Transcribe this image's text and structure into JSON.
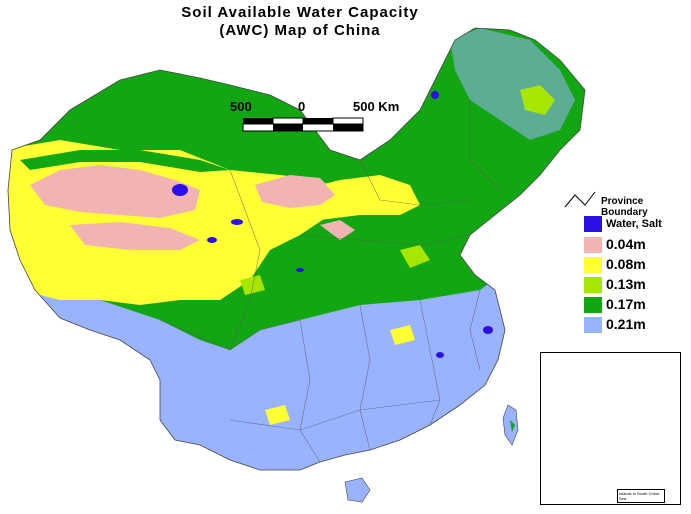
{
  "title": {
    "line1": "Soil Available Water Capacity",
    "line2": "(AWC) Map of China"
  },
  "scale_bar": {
    "labels": [
      "500",
      "0",
      "500 Km"
    ]
  },
  "legend": {
    "province_boundary_label": "Province Boundary",
    "items": [
      {
        "label": "Water, Salt",
        "color": "#2a0fe6"
      },
      {
        "label": "0.04m",
        "color": "#f2b3b3"
      },
      {
        "label": "0.08m",
        "color": "#ffff33"
      },
      {
        "label": "0.13m",
        "color": "#a6e600"
      },
      {
        "label": "0.17m",
        "color": "#13a613"
      },
      {
        "label": "0.21m",
        "color": "#99b3ff"
      }
    ]
  },
  "inset": {
    "caption": "Islands in South China Sea"
  },
  "colors": {
    "water_salt": "#2a0fe6",
    "awc_004": "#f2b3b3",
    "awc_008": "#ffff33",
    "awc_013": "#a6e600",
    "awc_017": "#13a613",
    "awc_021": "#99b3ff",
    "boundary": "#555555"
  }
}
